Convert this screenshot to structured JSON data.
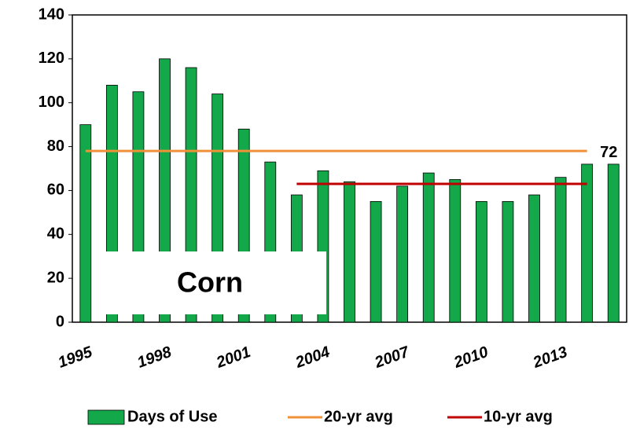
{
  "chart_data": {
    "type": "bar",
    "categories": [
      "1995",
      null,
      null,
      "1998",
      null,
      null,
      "2001",
      null,
      null,
      "2004",
      null,
      null,
      "2007",
      null,
      null,
      "2010",
      null,
      null,
      "2013",
      null,
      null
    ],
    "series": [
      {
        "name": "Days of Use",
        "color": "#13a84a",
        "type": "bar",
        "values": [
          90,
          108,
          105,
          120,
          116,
          104,
          88,
          73,
          58,
          69,
          64,
          55,
          62,
          68,
          65,
          55,
          55,
          58,
          66,
          72,
          72
        ],
        "value_labels": [
          null,
          null,
          null,
          null,
          null,
          null,
          null,
          null,
          null,
          null,
          null,
          null,
          null,
          null,
          null,
          null,
          null,
          null,
          null,
          null,
          "72"
        ]
      },
      {
        "name": "20-yr avg",
        "color": "#f0913a",
        "type": "line",
        "values": [
          78,
          78,
          78,
          78,
          78,
          78,
          78,
          78,
          78,
          78,
          78,
          78,
          78,
          78,
          78,
          78,
          78,
          78,
          78,
          78,
          null
        ]
      },
      {
        "name": "10-yr avg",
        "color": "#c00000",
        "type": "line",
        "values": [
          null,
          null,
          null,
          null,
          null,
          null,
          null,
          null,
          63,
          63,
          63,
          63,
          63,
          63,
          63,
          63,
          63,
          63,
          63,
          63,
          null
        ]
      }
    ],
    "annotation": "Corn",
    "ylim": [
      0,
      140
    ],
    "yticks": [
      0,
      20,
      40,
      60,
      80,
      100,
      120,
      140
    ],
    "grid": false,
    "legend": "bottom"
  }
}
